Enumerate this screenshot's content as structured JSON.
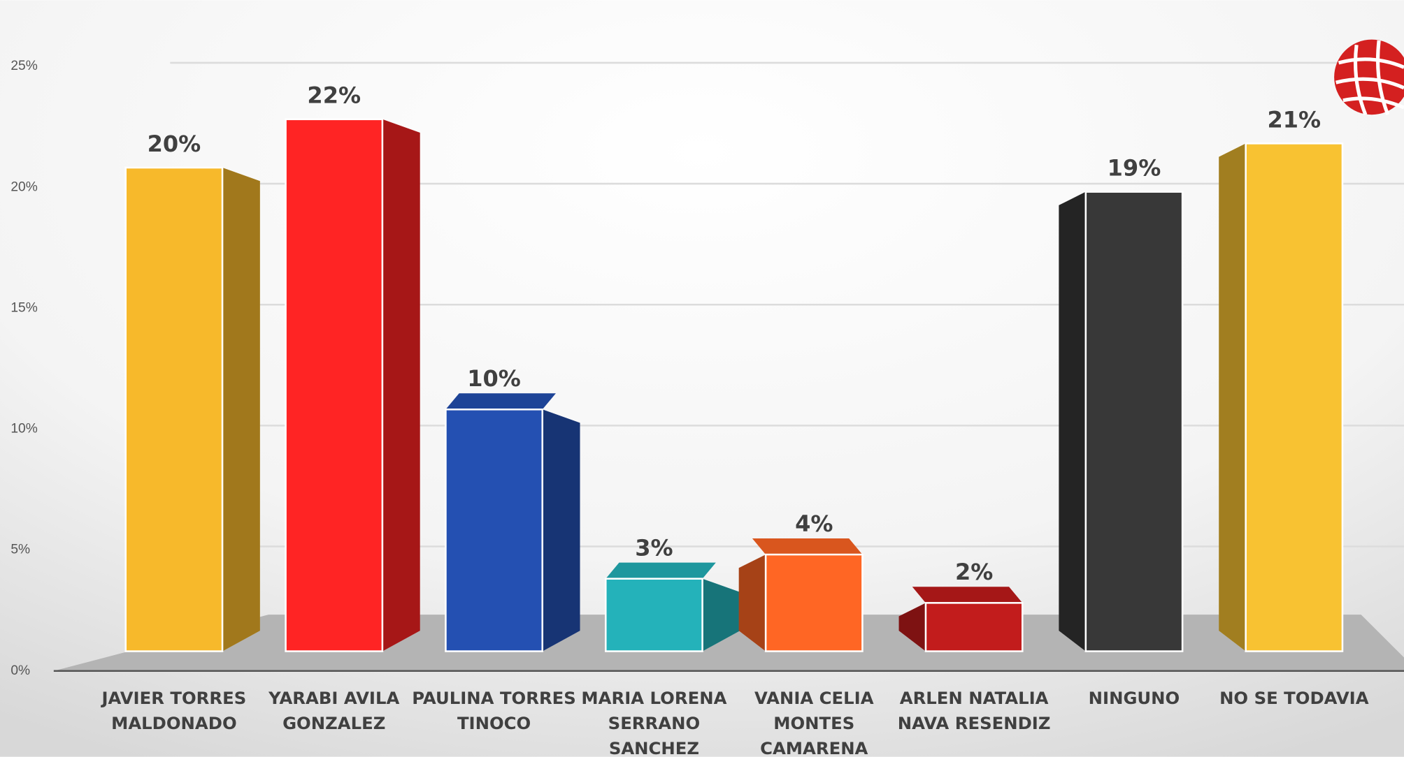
{
  "chart_data": {
    "type": "bar",
    "categories": [
      "JAVIER TORRES MALDONADO",
      "YARABI AVILA GONZALEZ",
      "PAULINA TORRES TINOCO",
      "MARIA LORENA SERRANO SANCHEZ",
      "VANIA CELIA MONTES CAMARENA",
      "ARLEN NATALIA NAVA RESENDIZ",
      "NINGUNO",
      "NO SE TODAVIA"
    ],
    "values": [
      20,
      22,
      10,
      3,
      4,
      2,
      19,
      21
    ],
    "value_labels": [
      "20%",
      "22%",
      "10%",
      "3%",
      "4%",
      "2%",
      "19%",
      "21%"
    ],
    "colors": [
      "#f7b92b",
      "#ff2424",
      "#2450b2",
      "#24b2ba",
      "#ff6624",
      "#c21c1c",
      "#383838",
      "#f8c232"
    ],
    "ylim": [
      0,
      25
    ],
    "yticks": [
      {
        "value": 0,
        "label": "0%"
      },
      {
        "value": 5,
        "label": "5%"
      },
      {
        "value": 10,
        "label": "10%"
      },
      {
        "value": 15,
        "label": "15%"
      },
      {
        "value": 20,
        "label": "20%"
      },
      {
        "value": 25,
        "label": "25%"
      }
    ],
    "grid": true
  }
}
